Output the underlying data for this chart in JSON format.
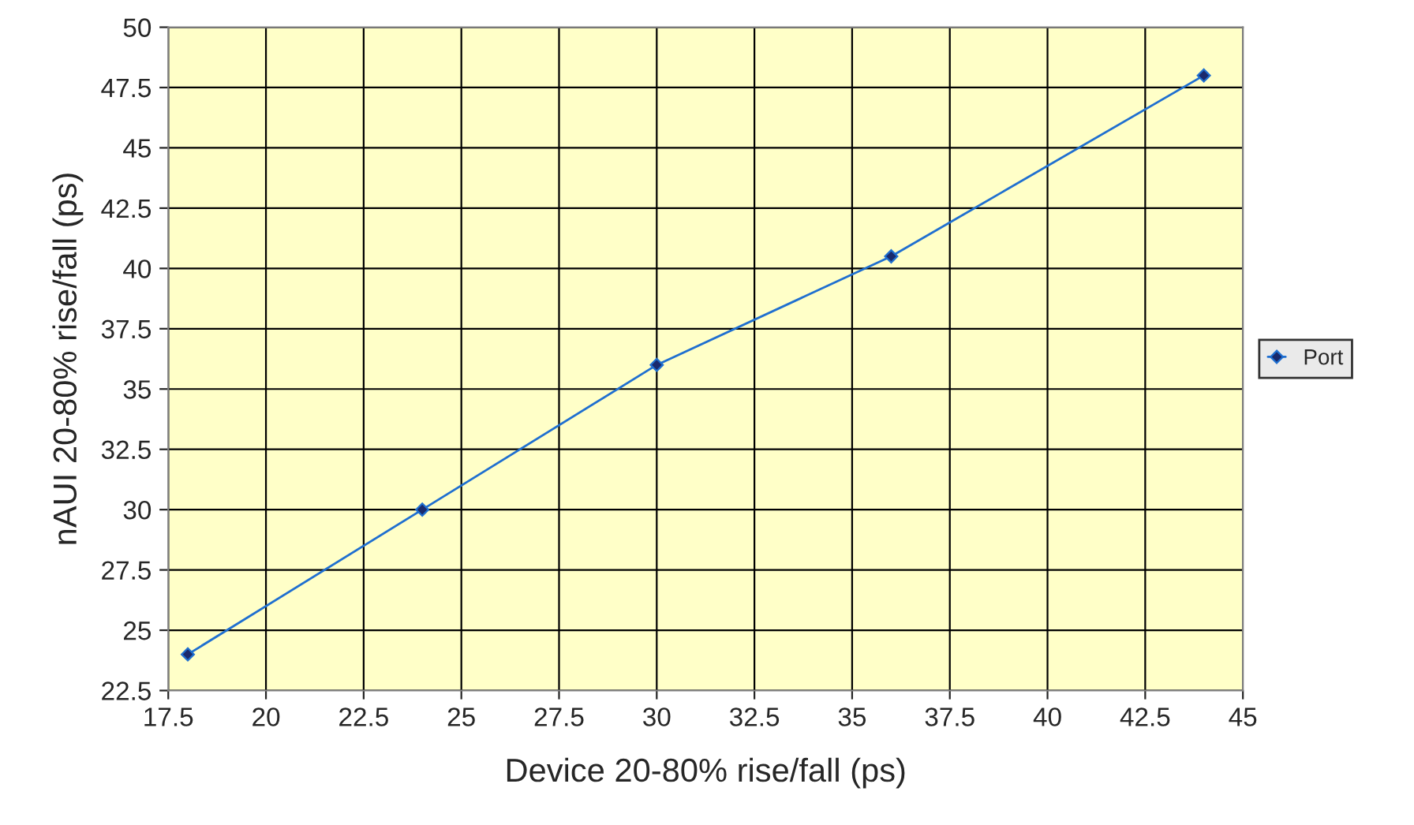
{
  "chart_data": {
    "type": "line",
    "xlabel": "Device 20-80% rise/fall (ps)",
    "ylabel": "nAUI 20-80% rise/fall (ps)",
    "x": [
      18,
      24,
      30,
      36,
      44
    ],
    "series": [
      {
        "name": "Port",
        "color": "#1f6fd0",
        "values": [
          24,
          30,
          36,
          40.5,
          48
        ]
      }
    ],
    "xlim": [
      17.5,
      45
    ],
    "xticks": [
      17.5,
      20,
      22.5,
      25,
      27.5,
      30,
      32.5,
      35,
      37.5,
      40,
      42.5,
      45
    ],
    "ylim": [
      22.5,
      50
    ],
    "yticks": [
      22.5,
      25,
      27.5,
      30,
      32.5,
      35,
      37.5,
      40,
      42.5,
      45,
      47.5,
      50
    ],
    "grid": true,
    "legend": "right",
    "marker": "diamond",
    "line_style": "solid"
  }
}
